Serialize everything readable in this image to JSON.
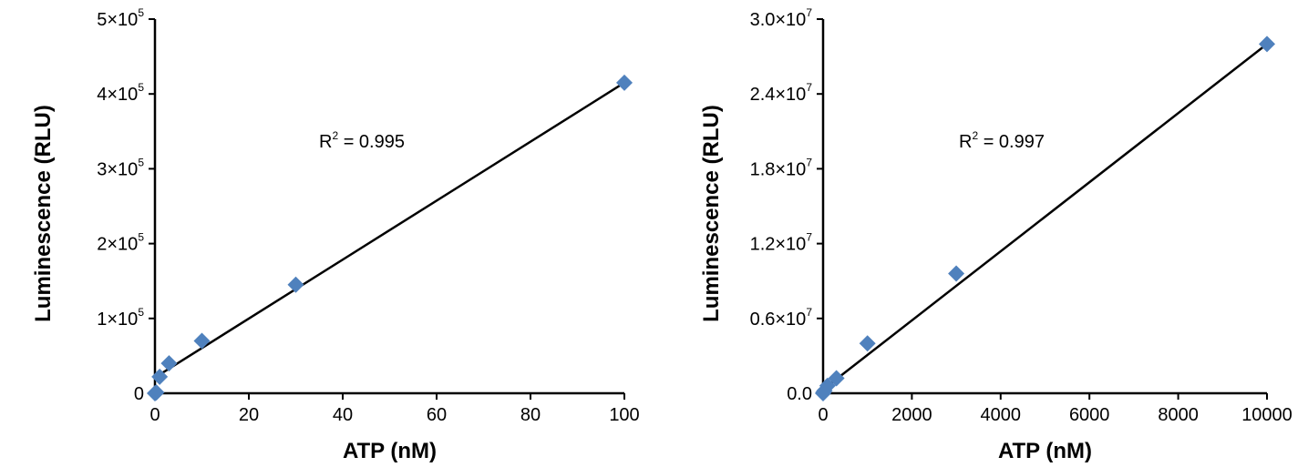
{
  "chart_data": [
    {
      "type": "scatter",
      "xlabel": "ATP (nM)",
      "ylabel": "Luminescence (RLU)",
      "xlim": [
        0,
        100
      ],
      "ylim": [
        0,
        500000
      ],
      "x_ticks": [
        "0",
        "20",
        "40",
        "60",
        "80",
        "100"
      ],
      "x_tick_values": [
        0,
        20,
        40,
        60,
        80,
        100
      ],
      "y_ticks": [
        {
          "value": 0,
          "base": "0",
          "exp": ""
        },
        {
          "value": 100000,
          "base": "1×10",
          "exp": "5"
        },
        {
          "value": 200000,
          "base": "2×10",
          "exp": "5"
        },
        {
          "value": 300000,
          "base": "3×10",
          "exp": "5"
        },
        {
          "value": 400000,
          "base": "4×10",
          "exp": "5"
        },
        {
          "value": 500000,
          "base": "5×10",
          "exp": "5"
        }
      ],
      "x": [
        0,
        0.3,
        1,
        3,
        10,
        30,
        100
      ],
      "y": [
        0,
        1000,
        22000,
        40000,
        70000,
        145000,
        415000
      ],
      "trendline": {
        "x": [
          0,
          100
        ],
        "y": [
          21000,
          415000
        ]
      },
      "annotation": {
        "prefix": "R",
        "sup": "2",
        "suffix": " = 0.995"
      },
      "grid": false,
      "legend": "none",
      "marker_color": "#4f81bd"
    },
    {
      "type": "scatter",
      "xlabel": "ATP (nM)",
      "ylabel": "Luminescence (RLU)",
      "xlim": [
        0,
        10000
      ],
      "ylim": [
        0,
        30000000
      ],
      "x_ticks": [
        "0",
        "2000",
        "4000",
        "6000",
        "8000",
        "10000"
      ],
      "x_tick_values": [
        0,
        2000,
        4000,
        6000,
        8000,
        10000
      ],
      "y_ticks": [
        {
          "value": 0,
          "base": "0.0",
          "exp": ""
        },
        {
          "value": 6000000,
          "base": "0.6×10",
          "exp": "7"
        },
        {
          "value": 12000000,
          "base": "1.2×10",
          "exp": "7"
        },
        {
          "value": 18000000,
          "base": "1.8×10",
          "exp": "7"
        },
        {
          "value": 24000000,
          "base": "2.4×10",
          "exp": "7"
        },
        {
          "value": 30000000,
          "base": "3.0×10",
          "exp": "7"
        }
      ],
      "x": [
        0,
        10,
        30,
        100,
        300,
        1000,
        3000,
        10000
      ],
      "y": [
        0,
        80000,
        200000,
        600000,
        1200000,
        4000000,
        9600000,
        28000000
      ],
      "trendline": {
        "x": [
          0,
          10000
        ],
        "y": [
          300000,
          28000000
        ]
      },
      "annotation": {
        "prefix": "R",
        "sup": "2",
        "suffix": " = 0.997"
      },
      "grid": false,
      "legend": "none",
      "marker_color": "#4f81bd"
    }
  ]
}
